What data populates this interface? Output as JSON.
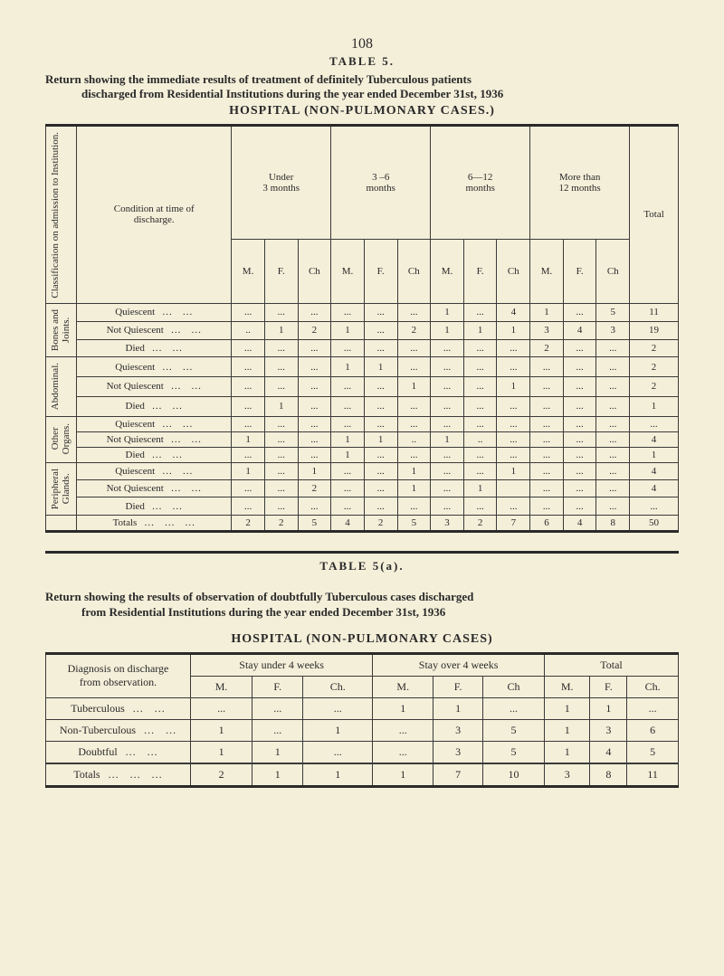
{
  "page_number": "108",
  "table1": {
    "label": "TABLE 5.",
    "caption_line1": "Return showing the immediate results of treatment of definitely Tuberculous patients",
    "caption_line2": "discharged from Residential Institutions during the year ended December 31st, 1936",
    "subhead": "HOSPITAL   (NON-PULMONARY   CASES.)",
    "col_classification": "Classification\non admission\nto Institution.",
    "col_condition": "Condition at time of\ndischarge.",
    "periods": [
      "Under\n3 months",
      "3 –6\nmonths",
      "6—12\nmonths",
      "More than\n12 months"
    ],
    "sub_cols": [
      "M.",
      "F.",
      "Ch"
    ],
    "col_total": "Total",
    "groups": [
      {
        "name": "Bones and\nJoints.",
        "rows": [
          {
            "cond": "Quiescent",
            "cells": [
              "...",
              "...",
              "...",
              "...",
              "...",
              "...",
              "1",
              "...",
              "4",
              "1",
              "...",
              "5"
            ],
            "total": "11"
          },
          {
            "cond": "Not Quiescent",
            "cells": [
              "..",
              "1",
              "2",
              "1",
              "...",
              "2",
              "1",
              "1",
              "1",
              "3",
              "4",
              "3"
            ],
            "total": "19"
          },
          {
            "cond": "Died",
            "cells": [
              "...",
              "...",
              "...",
              "...",
              "...",
              "...",
              "...",
              "...",
              "...",
              "2",
              "...",
              "..."
            ],
            "total": "2"
          }
        ]
      },
      {
        "name": "Abdominal.",
        "rows": [
          {
            "cond": "Quiescent",
            "cells": [
              "...",
              "...",
              "...",
              "1",
              "1",
              "...",
              "...",
              "...",
              "...",
              "...",
              "...",
              "..."
            ],
            "total": "2"
          },
          {
            "cond": "Not Quiescent",
            "cells": [
              "...",
              "...",
              "...",
              "...",
              "...",
              "1",
              "...",
              "...",
              "1",
              "...",
              "...",
              "..."
            ],
            "total": "2"
          },
          {
            "cond": "Died",
            "cells": [
              "...",
              "1",
              "...",
              "...",
              "...",
              "...",
              "...",
              "...",
              "...",
              "...",
              "...",
              "..."
            ],
            "total": "1"
          }
        ]
      },
      {
        "name": "Other\nOrgans.",
        "rows": [
          {
            "cond": "Quiescent",
            "cells": [
              "...",
              "...",
              "...",
              "...",
              "...",
              "...",
              "...",
              "...",
              "...",
              "...",
              "...",
              "..."
            ],
            "total": "..."
          },
          {
            "cond": "Not Quiescent",
            "cells": [
              "1",
              "...",
              "...",
              "1",
              "1",
              "..",
              "1",
              "..",
              "...",
              "...",
              "...",
              "..."
            ],
            "total": "4"
          },
          {
            "cond": "Died",
            "cells": [
              "...",
              "...",
              "...",
              "1",
              "...",
              "...",
              "...",
              "...",
              "...",
              "...",
              "...",
              "..."
            ],
            "total": "1"
          }
        ]
      },
      {
        "name": "Peripheral\nGlands.",
        "rows": [
          {
            "cond": "Quiescent",
            "cells": [
              "1",
              "...",
              "1",
              "...",
              "...",
              "1",
              "...",
              "...",
              "1",
              "...",
              "...",
              "..."
            ],
            "total": "4"
          },
          {
            "cond": "Not Quiescent",
            "cells": [
              "...",
              "...",
              "2",
              "...",
              "...",
              "1",
              "...",
              "1",
              "",
              "...",
              "...",
              "..."
            ],
            "total": "4"
          },
          {
            "cond": "Died",
            "cells": [
              "...",
              "...",
              "...",
              "...",
              "...",
              "...",
              "...",
              "...",
              "...",
              "...",
              "...",
              "..."
            ],
            "total": "..."
          }
        ]
      }
    ],
    "totals_label": "Totals",
    "totals_cells": [
      "2",
      "2",
      "5",
      "4",
      "2",
      "5",
      "3",
      "2",
      "7",
      "6",
      "4",
      "8"
    ],
    "totals_total": "50"
  },
  "table2": {
    "label": "TABLE 5(a).",
    "caption_line1": "Return showing the results of observation of doubtfully Tuberculous cases discharged",
    "caption_line2": "from Residential Institutions during the year ended December 31st,  1936",
    "subhead": "HOSPITAL (NON-PULMONARY CASES)",
    "col_diagnosis": "Diagnosis on discharge\nfrom observation.",
    "period_groups": [
      "Stay under 4 weeks",
      "Stay over 4 weeks",
      "Total"
    ],
    "sub_cols": [
      "M.",
      "F.",
      "Ch."
    ],
    "sub_cols_mid": [
      "M.",
      "F.",
      "Ch"
    ],
    "rows": [
      {
        "diag": "Tuberculous",
        "cells": [
          "...",
          "...",
          "...",
          "1",
          "1",
          "...",
          "1",
          "1",
          "..."
        ]
      },
      {
        "diag": "Non-Tuberculous",
        "cells": [
          "1",
          "...",
          "1",
          "...",
          "3",
          "5",
          "1",
          "3",
          "6"
        ]
      },
      {
        "diag": "Doubtful",
        "cells": [
          "1",
          "1",
          "...",
          "...",
          "3",
          "5",
          "1",
          "4",
          "5"
        ]
      }
    ],
    "totals_label": "Totals",
    "totals_cells": [
      "2",
      "1",
      "1",
      "1",
      "7",
      "10",
      "3",
      "8",
      "11"
    ]
  },
  "style": {
    "background": "#f4efd9",
    "text_color": "#2a2a2a",
    "border_color": "#3a3a3a"
  }
}
